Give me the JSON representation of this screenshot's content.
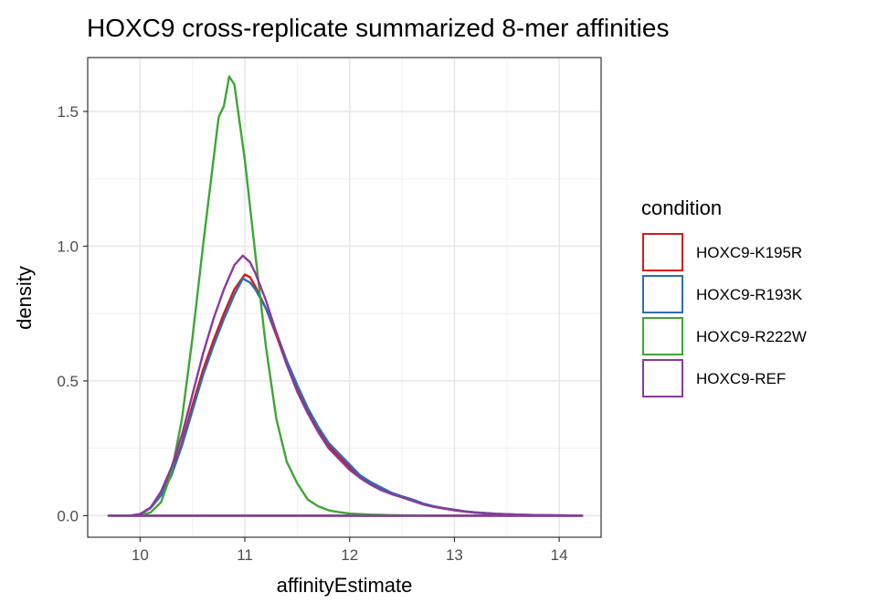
{
  "chart_data": {
    "type": "line",
    "subtype": "density",
    "title": "HOXC9 cross-replicate summarized 8-mer affinities",
    "xlabel": "affinityEstimate",
    "ylabel": "density",
    "xlim": [
      9.5,
      14.4
    ],
    "ylim": [
      -0.08,
      1.7
    ],
    "xticks": [
      10,
      11,
      12,
      13,
      14
    ],
    "yticks": [
      0.0,
      0.5,
      1.0,
      1.5
    ],
    "ytick_labels": [
      "0.0",
      "0.5",
      "1.0",
      "1.5"
    ],
    "grid": true,
    "theme": "bw",
    "legend": {
      "title": "condition",
      "position": "right"
    },
    "x_range": [
      9.7,
      14.22
    ],
    "series": [
      {
        "name": "HOXC9-K195R",
        "color": "#d7191c",
        "points": [
          [
            9.7,
            0
          ],
          [
            9.8,
            0
          ],
          [
            9.9,
            0
          ],
          [
            10.0,
            0.006
          ],
          [
            10.1,
            0.03
          ],
          [
            10.2,
            0.08
          ],
          [
            10.3,
            0.16
          ],
          [
            10.4,
            0.27
          ],
          [
            10.5,
            0.41
          ],
          [
            10.6,
            0.54
          ],
          [
            10.7,
            0.65
          ],
          [
            10.8,
            0.75
          ],
          [
            10.9,
            0.84
          ],
          [
            11.0,
            0.895
          ],
          [
            11.05,
            0.885
          ],
          [
            11.1,
            0.85
          ],
          [
            11.2,
            0.77
          ],
          [
            11.3,
            0.67
          ],
          [
            11.4,
            0.56
          ],
          [
            11.5,
            0.47
          ],
          [
            11.6,
            0.39
          ],
          [
            11.7,
            0.32
          ],
          [
            11.8,
            0.26
          ],
          [
            11.9,
            0.22
          ],
          [
            12.0,
            0.18
          ],
          [
            12.1,
            0.14
          ],
          [
            12.2,
            0.12
          ],
          [
            12.3,
            0.1
          ],
          [
            12.4,
            0.085
          ],
          [
            12.5,
            0.07
          ],
          [
            12.6,
            0.06
          ],
          [
            12.7,
            0.045
          ],
          [
            12.8,
            0.035
          ],
          [
            12.9,
            0.028
          ],
          [
            13.0,
            0.022
          ],
          [
            13.1,
            0.016
          ],
          [
            13.2,
            0.012
          ],
          [
            13.4,
            0.007
          ],
          [
            13.6,
            0.004
          ],
          [
            13.8,
            0.002
          ],
          [
            14.0,
            0.001
          ],
          [
            14.22,
            0
          ]
        ]
      },
      {
        "name": "HOXC9-R193K",
        "color": "#2c6fb5",
        "points": [
          [
            9.7,
            0
          ],
          [
            9.8,
            0
          ],
          [
            9.9,
            0
          ],
          [
            10.0,
            0.006
          ],
          [
            10.1,
            0.028
          ],
          [
            10.2,
            0.075
          ],
          [
            10.3,
            0.15
          ],
          [
            10.4,
            0.26
          ],
          [
            10.5,
            0.39
          ],
          [
            10.6,
            0.52
          ],
          [
            10.7,
            0.63
          ],
          [
            10.8,
            0.73
          ],
          [
            10.9,
            0.82
          ],
          [
            10.98,
            0.88
          ],
          [
            11.05,
            0.865
          ],
          [
            11.1,
            0.84
          ],
          [
            11.2,
            0.77
          ],
          [
            11.3,
            0.68
          ],
          [
            11.4,
            0.575
          ],
          [
            11.5,
            0.485
          ],
          [
            11.6,
            0.4
          ],
          [
            11.7,
            0.33
          ],
          [
            11.8,
            0.27
          ],
          [
            11.9,
            0.23
          ],
          [
            12.0,
            0.19
          ],
          [
            12.1,
            0.15
          ],
          [
            12.2,
            0.125
          ],
          [
            12.3,
            0.105
          ],
          [
            12.4,
            0.085
          ],
          [
            12.5,
            0.072
          ],
          [
            12.6,
            0.06
          ],
          [
            12.7,
            0.045
          ],
          [
            12.8,
            0.035
          ],
          [
            12.9,
            0.028
          ],
          [
            13.0,
            0.022
          ],
          [
            13.1,
            0.016
          ],
          [
            13.2,
            0.012
          ],
          [
            13.4,
            0.007
          ],
          [
            13.6,
            0.004
          ],
          [
            13.8,
            0.002
          ],
          [
            14.0,
            0.001
          ],
          [
            14.22,
            0
          ]
        ]
      },
      {
        "name": "HOXC9-R222W",
        "color": "#3fa535",
        "points": [
          [
            9.7,
            0
          ],
          [
            9.9,
            0
          ],
          [
            10.0,
            0.002
          ],
          [
            10.1,
            0.012
          ],
          [
            10.2,
            0.05
          ],
          [
            10.3,
            0.16
          ],
          [
            10.4,
            0.36
          ],
          [
            10.5,
            0.66
          ],
          [
            10.6,
            1.0
          ],
          [
            10.7,
            1.32
          ],
          [
            10.75,
            1.48
          ],
          [
            10.8,
            1.52
          ],
          [
            10.85,
            1.63
          ],
          [
            10.9,
            1.6
          ],
          [
            11.0,
            1.32
          ],
          [
            11.1,
            0.97
          ],
          [
            11.2,
            0.63
          ],
          [
            11.3,
            0.36
          ],
          [
            11.4,
            0.2
          ],
          [
            11.5,
            0.12
          ],
          [
            11.6,
            0.06
          ],
          [
            11.7,
            0.035
          ],
          [
            11.8,
            0.02
          ],
          [
            11.9,
            0.013
          ],
          [
            12.0,
            0.008
          ],
          [
            12.2,
            0.004
          ],
          [
            12.4,
            0.002
          ],
          [
            12.6,
            0.001
          ],
          [
            12.8,
            0
          ],
          [
            14.22,
            0
          ]
        ]
      },
      {
        "name": "HOXC9-REF",
        "color": "#8a3a9b",
        "points": [
          [
            9.7,
            0
          ],
          [
            9.8,
            0
          ],
          [
            9.9,
            0
          ],
          [
            10.0,
            0.006
          ],
          [
            10.1,
            0.03
          ],
          [
            10.2,
            0.09
          ],
          [
            10.3,
            0.18
          ],
          [
            10.4,
            0.3
          ],
          [
            10.5,
            0.45
          ],
          [
            10.6,
            0.6
          ],
          [
            10.7,
            0.73
          ],
          [
            10.8,
            0.84
          ],
          [
            10.9,
            0.93
          ],
          [
            10.98,
            0.965
          ],
          [
            11.05,
            0.94
          ],
          [
            11.1,
            0.9
          ],
          [
            11.2,
            0.8
          ],
          [
            11.3,
            0.68
          ],
          [
            11.4,
            0.56
          ],
          [
            11.5,
            0.46
          ],
          [
            11.6,
            0.38
          ],
          [
            11.7,
            0.31
          ],
          [
            11.8,
            0.25
          ],
          [
            11.9,
            0.21
          ],
          [
            12.0,
            0.17
          ],
          [
            12.1,
            0.14
          ],
          [
            12.2,
            0.115
          ],
          [
            12.3,
            0.095
          ],
          [
            12.4,
            0.08
          ],
          [
            12.5,
            0.068
          ],
          [
            12.6,
            0.055
          ],
          [
            12.7,
            0.042
          ],
          [
            12.8,
            0.033
          ],
          [
            12.9,
            0.026
          ],
          [
            13.0,
            0.02
          ],
          [
            13.1,
            0.015
          ],
          [
            13.2,
            0.011
          ],
          [
            13.4,
            0.006
          ],
          [
            13.6,
            0.003
          ],
          [
            13.8,
            0.0015
          ],
          [
            14.0,
            0.001
          ],
          [
            14.22,
            0
          ]
        ]
      }
    ]
  }
}
